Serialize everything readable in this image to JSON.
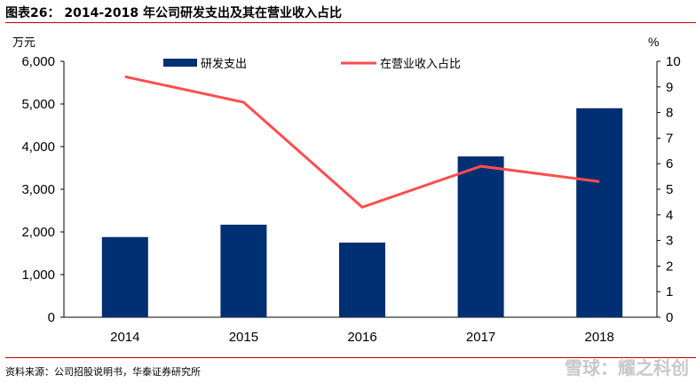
{
  "header": {
    "title": "图表26： 2014-2018 年公司研发支出及其在营业收入占比"
  },
  "footer": {
    "source": "资料来源：公司招股说明书，华泰证券研究所",
    "watermark": "雪球：耀之科创"
  },
  "chart_data": {
    "type": "bar+line",
    "categories": [
      "2014",
      "2015",
      "2016",
      "2017",
      "2018"
    ],
    "series": [
      {
        "name": "研发支出",
        "type": "bar",
        "axis": "left",
        "color": "#002f73",
        "values": [
          1880,
          2170,
          1750,
          3770,
          4900
        ]
      },
      {
        "name": "在营业收入占比",
        "type": "line",
        "axis": "right",
        "color": "#ff4d4d",
        "values": [
          9.4,
          8.4,
          4.3,
          5.9,
          5.3
        ]
      }
    ],
    "ylabel_left": "万元",
    "ylabel_right": "%",
    "ylim_left": [
      0,
      6000
    ],
    "ylim_right": [
      0,
      10
    ],
    "yticks_left": [
      "0",
      "1,000",
      "2,000",
      "3,000",
      "4,000",
      "5,000",
      "6,000"
    ],
    "yticks_right": [
      "0",
      "1",
      "2",
      "3",
      "4",
      "5",
      "6",
      "7",
      "8",
      "9",
      "10"
    ],
    "legend": "top",
    "grid": false
  }
}
